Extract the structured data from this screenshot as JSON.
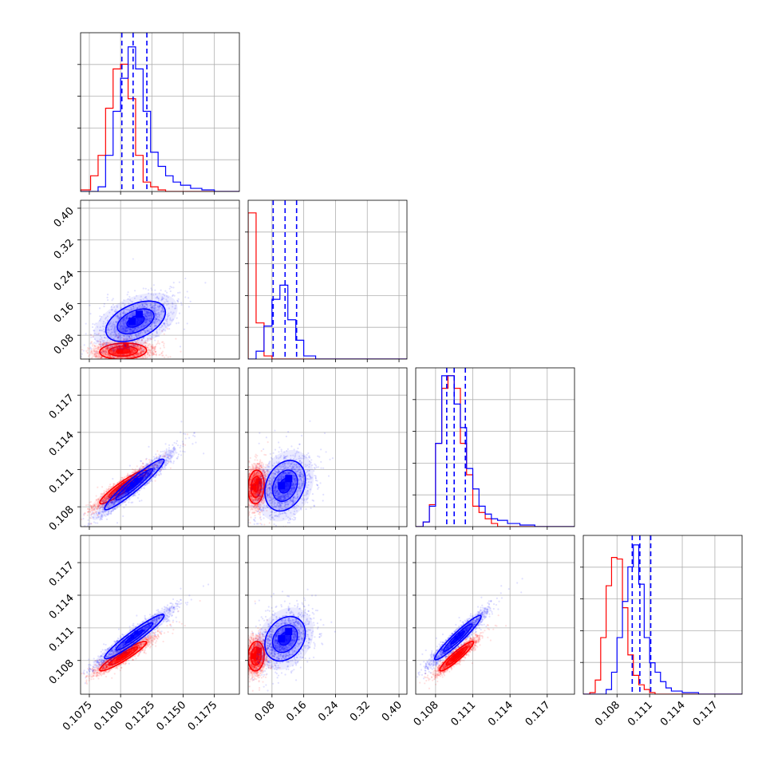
{
  "chart_data": {
    "type": "scatter",
    "subtype": "corner-plot",
    "series": [
      {
        "name": "",
        "color": "#ff0000"
      },
      {
        "name": "",
        "color": "#0000ff"
      }
    ],
    "grid": true,
    "panels": [
      {
        "row": 0,
        "col": 0,
        "type": "histogram",
        "xlim": [
          0.1068,
          0.1195
        ],
        "edges": [
          0.1068,
          0.1076,
          0.1082,
          0.1088,
          0.1094,
          0.11,
          0.1106,
          0.1112,
          0.1118,
          0.1124,
          0.113,
          0.1136,
          0.1142,
          0.1148,
          0.1156,
          0.1165,
          0.1175,
          0.1195
        ],
        "red": [
          0.01,
          0.1,
          0.23,
          0.53,
          0.78,
          0.81,
          0.59,
          0.23,
          0.06,
          0.03,
          0.01,
          0.0,
          0.0,
          0.0,
          0.0,
          0.0,
          0.0
        ],
        "blue": [
          0.0,
          0.0,
          0.03,
          0.23,
          0.51,
          0.72,
          0.92,
          0.78,
          0.51,
          0.25,
          0.16,
          0.1,
          0.06,
          0.04,
          0.02,
          0.01,
          0.0
        ],
        "quantiles": [
          0.1101,
          0.111,
          0.1121
        ]
      },
      {
        "row": 1,
        "col": 1,
        "type": "histogram",
        "xlim": [
          0.02,
          0.42
        ],
        "edges": [
          0.02,
          0.04,
          0.06,
          0.08,
          0.1,
          0.12,
          0.14,
          0.16,
          0.19,
          0.22,
          0.26,
          0.3,
          0.34,
          0.38,
          0.42
        ],
        "red": [
          0.93,
          0.23,
          0.02,
          0.0,
          0.0,
          0.0,
          0.0,
          0.0,
          0.0,
          0.0,
          0.0,
          0.0,
          0.0,
          0.0
        ],
        "blue": [
          0.0,
          0.05,
          0.21,
          0.38,
          0.47,
          0.25,
          0.12,
          0.02,
          0.0,
          0.0,
          0.0,
          0.0,
          0.0,
          0.0
        ],
        "quantiles": [
          0.083,
          0.113,
          0.142
        ]
      },
      {
        "row": 2,
        "col": 2,
        "type": "histogram",
        "xlim": [
          0.1064,
          0.1192
        ],
        "edges": [
          0.1064,
          0.107,
          0.1075,
          0.108,
          0.1085,
          0.109,
          0.1095,
          0.11,
          0.1105,
          0.111,
          0.1115,
          0.112,
          0.1125,
          0.113,
          0.1138,
          0.1148,
          0.116,
          0.1175,
          0.1192
        ],
        "red": [
          0.0,
          0.03,
          0.14,
          0.53,
          0.88,
          0.96,
          0.88,
          0.53,
          0.33,
          0.13,
          0.09,
          0.05,
          0.02,
          0.0,
          0.0,
          0.0,
          0.0,
          0.0
        ],
        "blue": [
          0.0,
          0.03,
          0.13,
          0.53,
          0.96,
          0.96,
          0.78,
          0.63,
          0.37,
          0.24,
          0.13,
          0.08,
          0.05,
          0.04,
          0.02,
          0.01,
          0.0,
          0.0
        ],
        "quantiles": [
          0.1089,
          0.1095,
          0.1104
        ]
      },
      {
        "row": 3,
        "col": 3,
        "type": "histogram",
        "xlim": [
          0.1049,
          0.1195
        ],
        "edges": [
          0.1049,
          0.1055,
          0.106,
          0.1065,
          0.107,
          0.1075,
          0.108,
          0.1085,
          0.109,
          0.1095,
          0.11,
          0.1105,
          0.111,
          0.1115,
          0.112,
          0.1125,
          0.113,
          0.114,
          0.1155,
          0.1195
        ],
        "red": [
          0.0,
          0.01,
          0.09,
          0.36,
          0.69,
          0.87,
          0.86,
          0.55,
          0.25,
          0.12,
          0.06,
          0.03,
          0.01,
          0.0,
          0.0,
          0.0,
          0.0,
          0.0,
          0.0
        ],
        "blue": [
          0.0,
          0.0,
          0.0,
          0.0,
          0.03,
          0.14,
          0.36,
          0.59,
          0.81,
          0.95,
          0.7,
          0.36,
          0.2,
          0.14,
          0.08,
          0.04,
          0.02,
          0.01,
          0.0
        ],
        "quantiles": [
          0.1094,
          0.1101,
          0.1111
        ]
      },
      {
        "row": 1,
        "col": 0,
        "type": "scatter",
        "xlim": [
          0.1068,
          0.1195
        ],
        "ylim": [
          0.02,
          0.42
        ],
        "red": {
          "mean": [
            0.1102,
            0.04
          ],
          "sd": [
            0.0011,
            0.012
          ],
          "corr": 0.1,
          "n": 1600
        },
        "blue": {
          "mean": [
            0.1112,
            0.115
          ],
          "sd": [
            0.0014,
            0.03
          ],
          "corr": 0.45,
          "n": 1500
        }
      },
      {
        "row": 2,
        "col": 0,
        "type": "scatter",
        "xlim": [
          0.1068,
          0.1195
        ],
        "ylim": [
          0.1064,
          0.1192
        ],
        "red": {
          "mean": [
            0.1102,
            0.1096
          ],
          "sd": [
            0.0011,
            0.0008
          ],
          "corr": 0.93,
          "n": 1600
        },
        "blue": {
          "mean": [
            0.1111,
            0.1098
          ],
          "sd": [
            0.0014,
            0.0012
          ],
          "corr": 0.95,
          "n": 1500
        }
      },
      {
        "row": 2,
        "col": 1,
        "type": "scatter",
        "xlim": [
          0.02,
          0.42
        ],
        "ylim": [
          0.1064,
          0.1192
        ],
        "red": {
          "mean": [
            0.04,
            0.1096
          ],
          "sd": [
            0.012,
            0.0008
          ],
          "corr": 0.1,
          "n": 1600
        },
        "blue": {
          "mean": [
            0.113,
            0.1097
          ],
          "sd": [
            0.03,
            0.0012
          ],
          "corr": 0.25,
          "n": 1500
        }
      },
      {
        "row": 3,
        "col": 0,
        "type": "scatter",
        "xlim": [
          0.1068,
          0.1195
        ],
        "ylim": [
          0.1049,
          0.1195
        ],
        "red": {
          "mean": [
            0.1102,
            0.1084
          ],
          "sd": [
            0.0011,
            0.0008
          ],
          "corr": 0.93,
          "n": 1600
        },
        "blue": {
          "mean": [
            0.1111,
            0.1102
          ],
          "sd": [
            0.0014,
            0.0012
          ],
          "corr": 0.95,
          "n": 1500
        }
      },
      {
        "row": 3,
        "col": 1,
        "type": "scatter",
        "xlim": [
          0.02,
          0.42
        ],
        "ylim": [
          0.1049,
          0.1195
        ],
        "red": {
          "mean": [
            0.04,
            0.1084
          ],
          "sd": [
            0.012,
            0.0008
          ],
          "corr": 0.1,
          "n": 1600
        },
        "blue": {
          "mean": [
            0.113,
            0.11
          ],
          "sd": [
            0.03,
            0.0012
          ],
          "corr": 0.25,
          "n": 1500
        }
      },
      {
        "row": 3,
        "col": 2,
        "type": "scatter",
        "xlim": [
          0.1064,
          0.1192
        ],
        "ylim": [
          0.1049,
          0.1195
        ],
        "red": {
          "mean": [
            0.1097,
            0.1084
          ],
          "sd": [
            0.0008,
            0.0008
          ],
          "corr": 0.93,
          "n": 1600
        },
        "blue": {
          "mean": [
            0.1098,
            0.1101
          ],
          "sd": [
            0.0011,
            0.0012
          ],
          "corr": 0.95,
          "n": 1500
        }
      }
    ],
    "axes": {
      "x": [
        {
          "col": 0,
          "ticks": [
            0.1075,
            0.11,
            0.1125,
            0.115,
            0.1175
          ],
          "labels": [
            "0.1075",
            "0.1100",
            "0.1125",
            "0.1150",
            "0.1175"
          ]
        },
        {
          "col": 1,
          "ticks": [
            0.08,
            0.16,
            0.24,
            0.32,
            0.4
          ],
          "labels": [
            "0.08",
            "0.16",
            "0.24",
            "0.32",
            "0.40"
          ]
        },
        {
          "col": 2,
          "ticks": [
            0.108,
            0.111,
            0.114,
            0.117
          ],
          "labels": [
            "0.108",
            "0.111",
            "0.114",
            "0.117"
          ]
        },
        {
          "col": 3,
          "ticks": [
            0.108,
            0.111,
            0.114,
            0.117
          ],
          "labels": [
            "0.108",
            "0.111",
            "0.114",
            "0.117"
          ]
        }
      ],
      "y": [
        {
          "row": 1,
          "ticks": [
            0.08,
            0.16,
            0.24,
            0.32,
            0.4
          ],
          "labels": [
            "0.08",
            "0.16",
            "0.24",
            "0.32",
            "0.40"
          ]
        },
        {
          "row": 2,
          "ticks": [
            0.108,
            0.111,
            0.114,
            0.117
          ],
          "labels": [
            "0.108",
            "0.111",
            "0.114",
            "0.117"
          ]
        },
        {
          "row": 3,
          "ticks": [
            0.108,
            0.111,
            0.114,
            0.117
          ],
          "labels": [
            "0.108",
            "0.111",
            "0.114",
            "0.117"
          ]
        }
      ]
    }
  }
}
